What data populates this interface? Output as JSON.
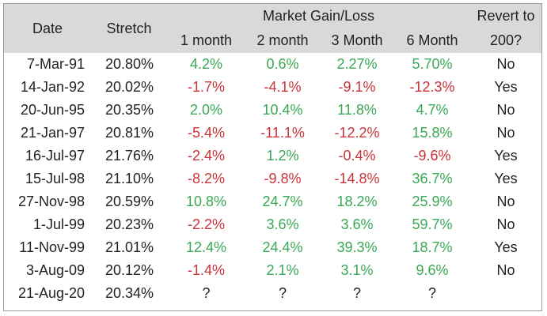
{
  "columns": {
    "date": "Date",
    "stretch": "Stretch",
    "market_group": "Market Gain/Loss",
    "m1": "1 month",
    "m2": "2 month",
    "m3": "3 Month",
    "m6": "6 Month",
    "revert_line1": "Revert to",
    "revert_line2": "200?"
  },
  "colors": {
    "positive": "#3aa855",
    "negative": "#c8343a",
    "header_bg": "#d9d9d9"
  },
  "rows": [
    {
      "date": "7-Mar-91",
      "stretch": "20.80%",
      "m1": "4.2%",
      "m2": "0.6%",
      "m3": "2.27%",
      "m6": "5.70%",
      "revert": "No"
    },
    {
      "date": "14-Jan-92",
      "stretch": "20.02%",
      "m1": "-1.7%",
      "m2": "-4.1%",
      "m3": "-9.1%",
      "m6": "-12.3%",
      "revert": "Yes"
    },
    {
      "date": "20-Jun-95",
      "stretch": "20.35%",
      "m1": "2.0%",
      "m2": "10.4%",
      "m3": "11.8%",
      "m6": "4.7%",
      "revert": "No"
    },
    {
      "date": "21-Jan-97",
      "stretch": "20.81%",
      "m1": "-5.4%",
      "m2": "-11.1%",
      "m3": "-12.2%",
      "m6": "15.8%",
      "revert": "No"
    },
    {
      "date": "16-Jul-97",
      "stretch": "21.76%",
      "m1": "-2.4%",
      "m2": "1.2%",
      "m3": "-0.4%",
      "m6": "-9.6%",
      "revert": "Yes"
    },
    {
      "date": "15-Jul-98",
      "stretch": "21.10%",
      "m1": "-8.2%",
      "m2": "-9.8%",
      "m3": "-14.8%",
      "m6": "36.7%",
      "revert": "Yes"
    },
    {
      "date": "27-Nov-98",
      "stretch": "20.59%",
      "m1": "10.8%",
      "m2": "24.7%",
      "m3": "18.2%",
      "m6": "25.9%",
      "revert": "No"
    },
    {
      "date": "1-Jul-99",
      "stretch": "20.23%",
      "m1": "-2.2%",
      "m2": "3.6%",
      "m3": "3.6%",
      "m6": "59.7%",
      "revert": "No"
    },
    {
      "date": "11-Nov-99",
      "stretch": "21.01%",
      "m1": "12.4%",
      "m2": "24.4%",
      "m3": "39.3%",
      "m6": "18.7%",
      "revert": "Yes"
    },
    {
      "date": "3-Aug-09",
      "stretch": "20.12%",
      "m1": "-1.4%",
      "m2": "2.1%",
      "m3": "3.1%",
      "m6": "9.6%",
      "revert": "No"
    },
    {
      "date": "21-Aug-20",
      "stretch": "20.34%",
      "m1": "?",
      "m2": "?",
      "m3": "?",
      "m6": "?",
      "revert": ""
    }
  ]
}
